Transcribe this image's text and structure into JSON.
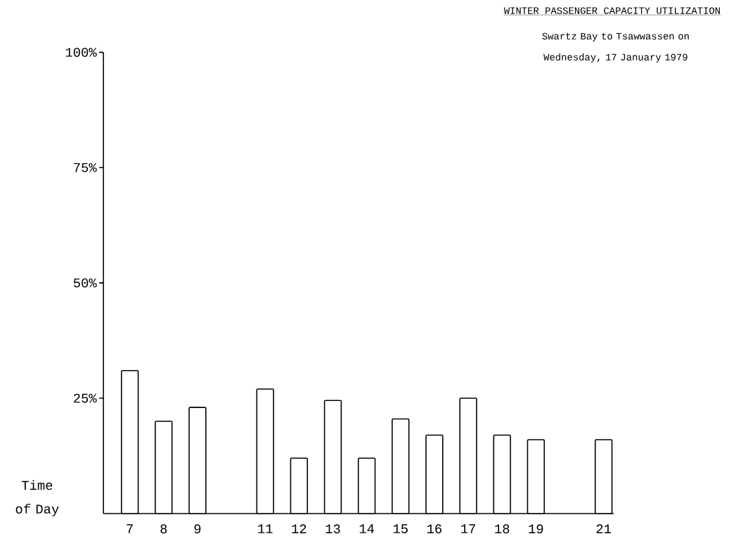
{
  "chart_data": {
    "type": "bar",
    "title": "WINTER PASSENGER CAPACITY UTILIZATION",
    "subtitle": "Swartz Bay to Tsawwassen on Wednesday, 17 January 1979",
    "xlabel": "Time of Day",
    "categories": [
      "7",
      "8",
      "9",
      null,
      "11",
      "12",
      "13",
      "14",
      "15",
      "16",
      "17",
      "18",
      "19",
      null,
      "21"
    ],
    "values": [
      31,
      20,
      23,
      null,
      27,
      12,
      24.5,
      12,
      20.5,
      17,
      25,
      17,
      16,
      null,
      16
    ],
    "color": "#ffffff",
    "ylim": [
      0,
      100
    ],
    "yticks": [
      {
        "value": 25,
        "label": "25%"
      },
      {
        "value": 50,
        "label": "50%"
      },
      {
        "value": 75,
        "label": "75%"
      },
      {
        "value": 100,
        "label": "100%"
      }
    ]
  }
}
